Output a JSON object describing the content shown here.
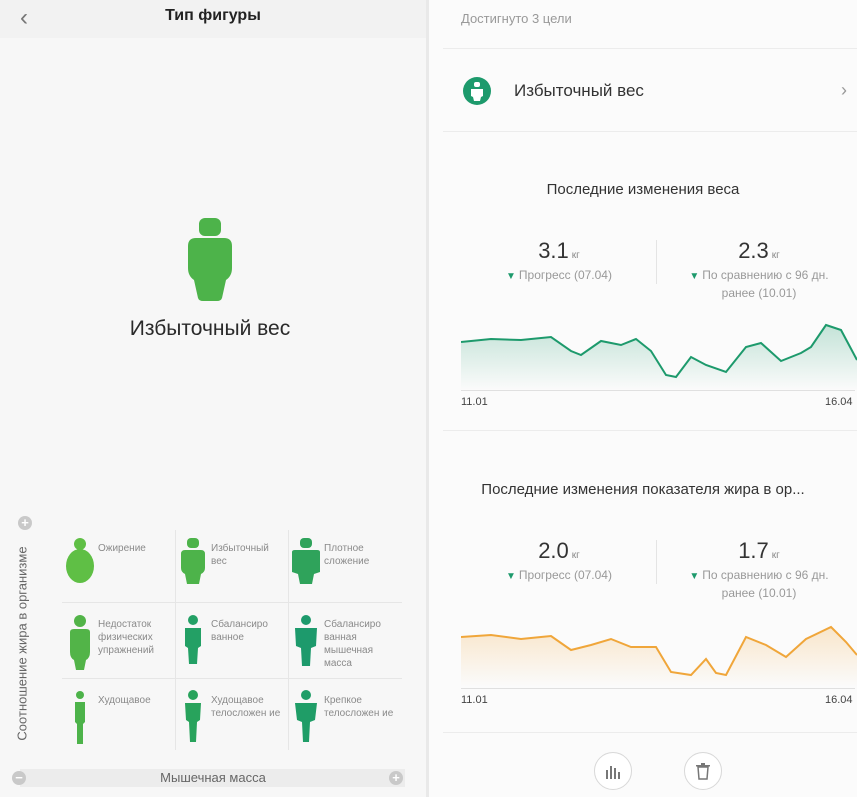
{
  "left": {
    "title": "Тип фигуры",
    "current_type": "Избыточный вес",
    "y_axis_label": "Соотношение жира в организме",
    "x_axis_label": "Мышечная масса",
    "grid": [
      {
        "label": "Ожирение",
        "color": "#5fbf45"
      },
      {
        "label": "Избыточный вес",
        "color": "#4db34a"
      },
      {
        "label": "Плотное сложение",
        "color": "#2fa35b"
      },
      {
        "label": "Недостаток физических упражнений",
        "color": "#52b448"
      },
      {
        "label": "Сбалансиро ванное",
        "color": "#23a065"
      },
      {
        "label": "Сбалансиро ванная мышечная масса",
        "color": "#1d9a6c"
      },
      {
        "label": "Худощавое",
        "color": "#4db34a"
      },
      {
        "label": "Худощавое телосложен ие",
        "color": "#28a35c"
      },
      {
        "label": "Крепкое телосложен ие",
        "color": "#1f9d67"
      }
    ]
  },
  "right": {
    "goals_text": "Достигнуто 3 цели",
    "body_type_label": "Избыточный вес",
    "weight": {
      "title": "Последние изменения веса",
      "progress_value": "3.1",
      "unit": "кг",
      "progress_label": "Прогресс (07.04)",
      "compare_value": "2.3",
      "compare_label_1": "По сравнению с 96 дн.",
      "compare_label_2": "ранее (10.01)",
      "x_start": "11.01",
      "x_end": "16.04"
    },
    "fat": {
      "title": "Последние изменения показателя жира в ор...",
      "progress_value": "2.0",
      "unit": "кг",
      "progress_label": "Прогресс (07.04)",
      "compare_value": "1.7",
      "compare_label_1": "По сравнению с 96 дн.",
      "compare_label_2": "ранее (10.01)",
      "x_start": "11.01",
      "x_end": "16.04"
    }
  },
  "colors": {
    "green": "#1d9a6c",
    "figure_green": "#4db34a",
    "orange": "#f0a63a"
  }
}
